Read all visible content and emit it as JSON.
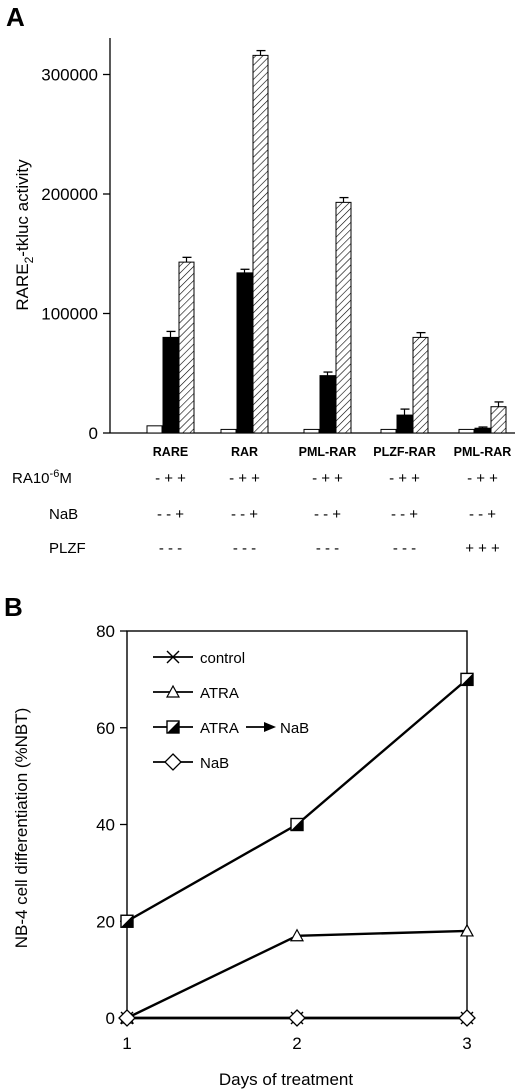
{
  "chart_data": [
    {
      "panel": "A",
      "type": "bar",
      "ylabel_main": "RARE",
      "ylabel_sub": "2",
      "ylabel_rest": "-tkluc activity",
      "ylim": [
        0,
        330000
      ],
      "yticks": [
        0,
        100000,
        200000,
        300000
      ],
      "yticklabels": [
        "0",
        "100000",
        "200000",
        "300000"
      ],
      "categories": [
        "RARE",
        "RAR",
        "PML-RAR",
        "PLZF-RAR",
        "PML-RAR"
      ],
      "series": [
        {
          "fill": "#ffffff",
          "values": [
            6000,
            3000,
            3000,
            3000,
            3000
          ],
          "errors": [
            0,
            0,
            0,
            0,
            0
          ]
        },
        {
          "fill": "#000000",
          "values": [
            80000,
            134000,
            48000,
            15000,
            4000
          ],
          "errors": [
            5000,
            3000,
            3000,
            5000,
            1000
          ]
        },
        {
          "fill": "hatch",
          "values": [
            143000,
            316000,
            193000,
            80000,
            22000
          ],
          "errors": [
            4000,
            4000,
            4000,
            4000,
            4000
          ]
        }
      ],
      "condition_rows": [
        {
          "label_main": "RA10",
          "label_sup": "-6",
          "label_end": "M",
          "marks": [
            "- + +",
            "- + +",
            "- + +",
            "- + +",
            "- + +"
          ]
        },
        {
          "label_main": "NaB",
          "label_sup": "",
          "label_end": "",
          "marks": [
            "- - +",
            "- - +",
            "- - +",
            "- - +",
            "- - +"
          ]
        },
        {
          "label_main": "PLZF",
          "label_sup": "",
          "label_end": "",
          "marks": [
            "- - -",
            "- - -",
            "- - -",
            "- - -",
            "+ + +"
          ]
        }
      ]
    },
    {
      "panel": "B",
      "type": "line",
      "xlabel": "Days of treatment",
      "ylabel": "NB-4 cell differentiation (%NBT)",
      "x": [
        1,
        2,
        3
      ],
      "xlim": [
        1,
        3
      ],
      "ylim": [
        0,
        80
      ],
      "yticks": [
        0,
        20,
        40,
        60,
        80
      ],
      "xticks": [
        1,
        2,
        3
      ],
      "legend_position": "top-left",
      "series": [
        {
          "name": "control",
          "marker": "cross",
          "values": [
            0,
            0,
            0
          ]
        },
        {
          "name": "ATRA",
          "marker": "triangle",
          "values": [
            0,
            17,
            18
          ]
        },
        {
          "name_left": "ATRA",
          "name_right": "NaB",
          "marker": "half-square",
          "values": [
            20,
            40,
            70
          ]
        },
        {
          "name": "NaB",
          "marker": "diamond",
          "values": [
            0,
            0,
            0
          ]
        }
      ]
    }
  ]
}
